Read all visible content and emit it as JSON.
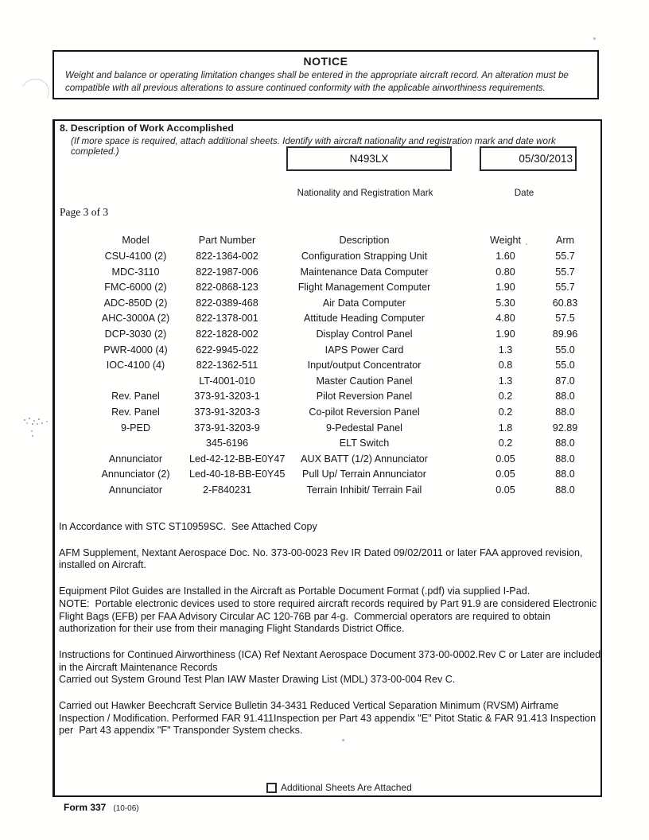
{
  "notice": {
    "title": "NOTICE",
    "body": "Weight and balance or operating limitation changes shall be entered in the appropriate aircraft record.  An alteration must be compatible with all previous alterations to assure continued conformity with the applicable airworthiness requirements."
  },
  "section8": {
    "heading": "8.  Description of Work Accomplished",
    "instruction": "(If more space is required, attach additional sheets.  Identify with aircraft nationality and registration mark and date work completed.)",
    "registration": {
      "value": "N493LX",
      "label": "Nationality and Registration Mark"
    },
    "date": {
      "value": "05/30/2013",
      "label": "Date"
    },
    "page_label": "Page 3 of 3"
  },
  "table": {
    "headers": [
      "Model",
      "Part Number",
      "Description",
      "Weight",
      "Arm"
    ],
    "rows": [
      [
        "CSU-4100 (2)",
        "822-1364-002",
        "Configuration Strapping Unit",
        "1.60",
        "55.7"
      ],
      [
        "MDC-3110",
        "822-1987-006",
        "Maintenance Data Computer",
        "0.80",
        "55.7"
      ],
      [
        "FMC-6000 (2)",
        "822-0868-123",
        "Flight Management Computer",
        "1.90",
        "55.7"
      ],
      [
        "ADC-850D (2)",
        "822-0389-468",
        "Air Data Computer",
        "5.30",
        "60.83"
      ],
      [
        "AHC-3000A (2)",
        "822-1378-001",
        "Attitude Heading Computer",
        "4.80",
        "57.5"
      ],
      [
        "DCP-3030 (2)",
        "822-1828-002",
        "Display Control Panel",
        "1.90",
        "89.96"
      ],
      [
        "PWR-4000 (4)",
        "622-9945-022",
        "IAPS Power Card",
        "1.3",
        "55.0"
      ],
      [
        "IOC-4100 (4)",
        "822-1362-511",
        "Input/output Concentrator",
        "0.8",
        "55.0"
      ],
      [
        "",
        "LT-4001-010",
        "Master Caution Panel",
        "1.3",
        "87.0"
      ],
      [
        "Rev. Panel",
        "373-91-3203-1",
        "Pilot Reversion Panel",
        "0.2",
        "88.0"
      ],
      [
        "Rev. Panel",
        "373-91-3203-3",
        "Co-pilot Reversion Panel",
        "0.2",
        "88.0"
      ],
      [
        "9-PED",
        "373-91-3203-9",
        "9-Pedestal Panel",
        "1.8",
        "92.89"
      ],
      [
        "",
        "345-6196",
        "ELT Switch",
        "0.2",
        "88.0"
      ],
      [
        "Annunciator",
        "Led-42-12-BB-E0Y47",
        "AUX BATT (1/2) Annunciator",
        "0.05",
        "88.0"
      ],
      [
        "Annunciator (2)",
        "Led-40-18-BB-E0Y45",
        "Pull Up/ Terrain Annunciator",
        "0.05",
        "88.0"
      ],
      [
        "Annunciator",
        "2-F840231",
        "Terrain Inhibit/ Terrain Fail",
        "0.05",
        "88.0"
      ]
    ]
  },
  "paragraphs": [
    "In Accordance with STC ST10959SC.  See Attached Copy",
    "AFM Supplement, Nextant Aerospace Doc. No. 373-00-0023 Rev IR Dated 09/02/2011 or later FAA approved revision, installed on Aircraft.",
    "Equipment Pilot Guides are Installed in the Aircraft as Portable Document Format (.pdf) via supplied I-Pad.\nNOTE:  Portable electronic devices used to store required aircraft records required by Part 91.9 are considered Electronic Flight Bags (EFB) per FAA Advisory Circular AC 120-76B par 4-g.  Commercial operators are required to obtain authorization for their use from their managing Flight Standards District Office.",
    "Instructions for Continued Airworthiness (ICA) Ref Nextant Aerospace Document 373-00-0002.Rev C or Later are included in the Aircraft Maintenance Records\nCarried out System Ground Test Plan IAW Master Drawing List (MDL) 373-00-004 Rev C.",
    "Carried out Hawker Beechcraft Service Bulletin 34-3431 Reduced Vertical Separation Minimum (RVSM) Airframe Inspection / Modification. Performed FAR 91.411Inspection per Part 43 appendix \"E\" Pitot Static & FAR 91.413 Inspection per  Part 43 appendix \"F\" Transponder System checks."
  ],
  "footer": {
    "checkbox_label": "Additional Sheets Are Attached",
    "form_label": "Form 337",
    "form_revision": "(10-06)"
  },
  "colors": {
    "ink": "#1b1b1b",
    "paper": "#ffffff",
    "border": "#151515"
  }
}
